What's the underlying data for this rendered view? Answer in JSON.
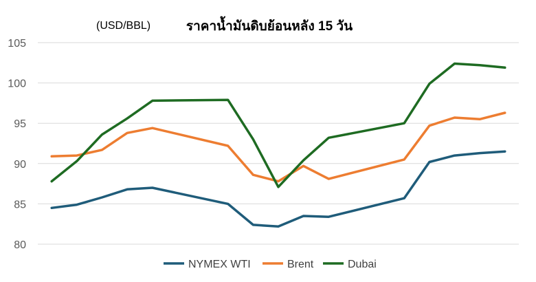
{
  "chart_data": {
    "type": "line",
    "title": "ราคาน้ำมันดิบย้อนหลัง 15 วัน",
    "unit_label": "(USD/BBL)",
    "xlabel": "",
    "ylabel": "",
    "ylim": [
      80,
      105
    ],
    "yticks": [
      80,
      85,
      90,
      95,
      100,
      105
    ],
    "grid": true,
    "legend_position": "bottom",
    "x": [
      1,
      2,
      3,
      4,
      5,
      6,
      7,
      8,
      9,
      10,
      11,
      12,
      13,
      14,
      15,
      16,
      17,
      18,
      19
    ],
    "series": [
      {
        "name": "NYMEX WTI",
        "color": "#1f5c7a",
        "points": [
          [
            1,
            84.5
          ],
          [
            2,
            84.9
          ],
          [
            3,
            85.8
          ],
          [
            4,
            86.8
          ],
          [
            5,
            87.0
          ],
          [
            8,
            85.0
          ],
          [
            9,
            82.4
          ],
          [
            10,
            82.2
          ],
          [
            11,
            83.5
          ],
          [
            12,
            83.4
          ],
          [
            15,
            85.7
          ],
          [
            16,
            90.2
          ],
          [
            17,
            91.0
          ],
          [
            18,
            91.3
          ],
          [
            19,
            91.5
          ]
        ]
      },
      {
        "name": "Brent",
        "color": "#ed7d31",
        "points": [
          [
            1,
            90.9
          ],
          [
            2,
            91.0
          ],
          [
            3,
            91.7
          ],
          [
            4,
            93.8
          ],
          [
            5,
            94.4
          ],
          [
            8,
            92.2
          ],
          [
            9,
            88.6
          ],
          [
            10,
            87.8
          ],
          [
            11,
            89.7
          ],
          [
            12,
            88.1
          ],
          [
            15,
            90.5
          ],
          [
            16,
            94.7
          ],
          [
            17,
            95.7
          ],
          [
            18,
            95.5
          ],
          [
            19,
            96.3
          ]
        ]
      },
      {
        "name": "Dubai",
        "color": "#1e6b22",
        "points": [
          [
            1,
            87.8
          ],
          [
            2,
            90.3
          ],
          [
            3,
            93.6
          ],
          [
            4,
            95.6
          ],
          [
            5,
            97.8
          ],
          [
            8,
            97.9
          ],
          [
            9,
            93.0
          ],
          [
            10,
            87.1
          ],
          [
            11,
            90.4
          ],
          [
            12,
            93.2
          ],
          [
            15,
            95.0
          ],
          [
            16,
            99.9
          ],
          [
            17,
            102.4
          ],
          [
            18,
            102.2
          ],
          [
            19,
            101.9
          ]
        ]
      }
    ]
  }
}
